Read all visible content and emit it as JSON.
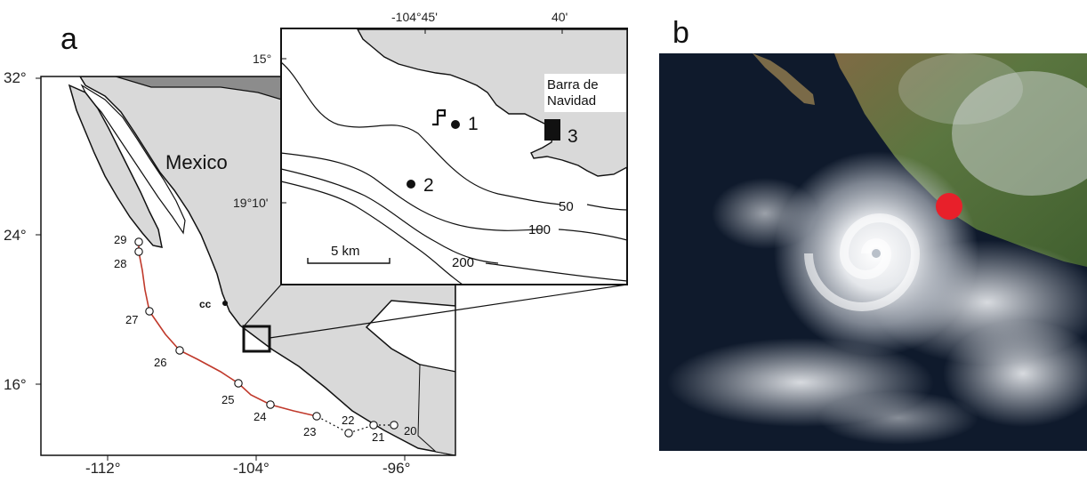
{
  "panel_a": {
    "letter": "a",
    "country_label": "Mexico",
    "lat_ticks": [
      "32°",
      "24°",
      "16°"
    ],
    "lon_ticks": [
      "-112°",
      "-104°",
      "-96°"
    ],
    "cc_label": "cc",
    "track_days": [
      "20",
      "21",
      "22",
      "23",
      "24",
      "25",
      "26",
      "27",
      "28",
      "29"
    ],
    "colors": {
      "land": "#d9d9d9",
      "usa": "#8c8c8c",
      "ocean": "#ffffff",
      "track": "#c0392b",
      "outline": "#111111"
    }
  },
  "inset": {
    "lon_ticks": [
      "-104°45'",
      "40'"
    ],
    "lat_ticks": [
      "15°",
      "19°10'"
    ],
    "town": [
      "Barra de",
      "Navidad"
    ],
    "sites": [
      "1",
      "2",
      "3"
    ],
    "isobaths": [
      "50",
      "100",
      "200"
    ],
    "scale_label": "5 km"
  },
  "panel_b": {
    "letter": "b",
    "colors": {
      "marker": "#e8202a",
      "ocean": "#0f1a2c",
      "land": "#5a7040",
      "cloud": "#e6e9ee"
    }
  }
}
